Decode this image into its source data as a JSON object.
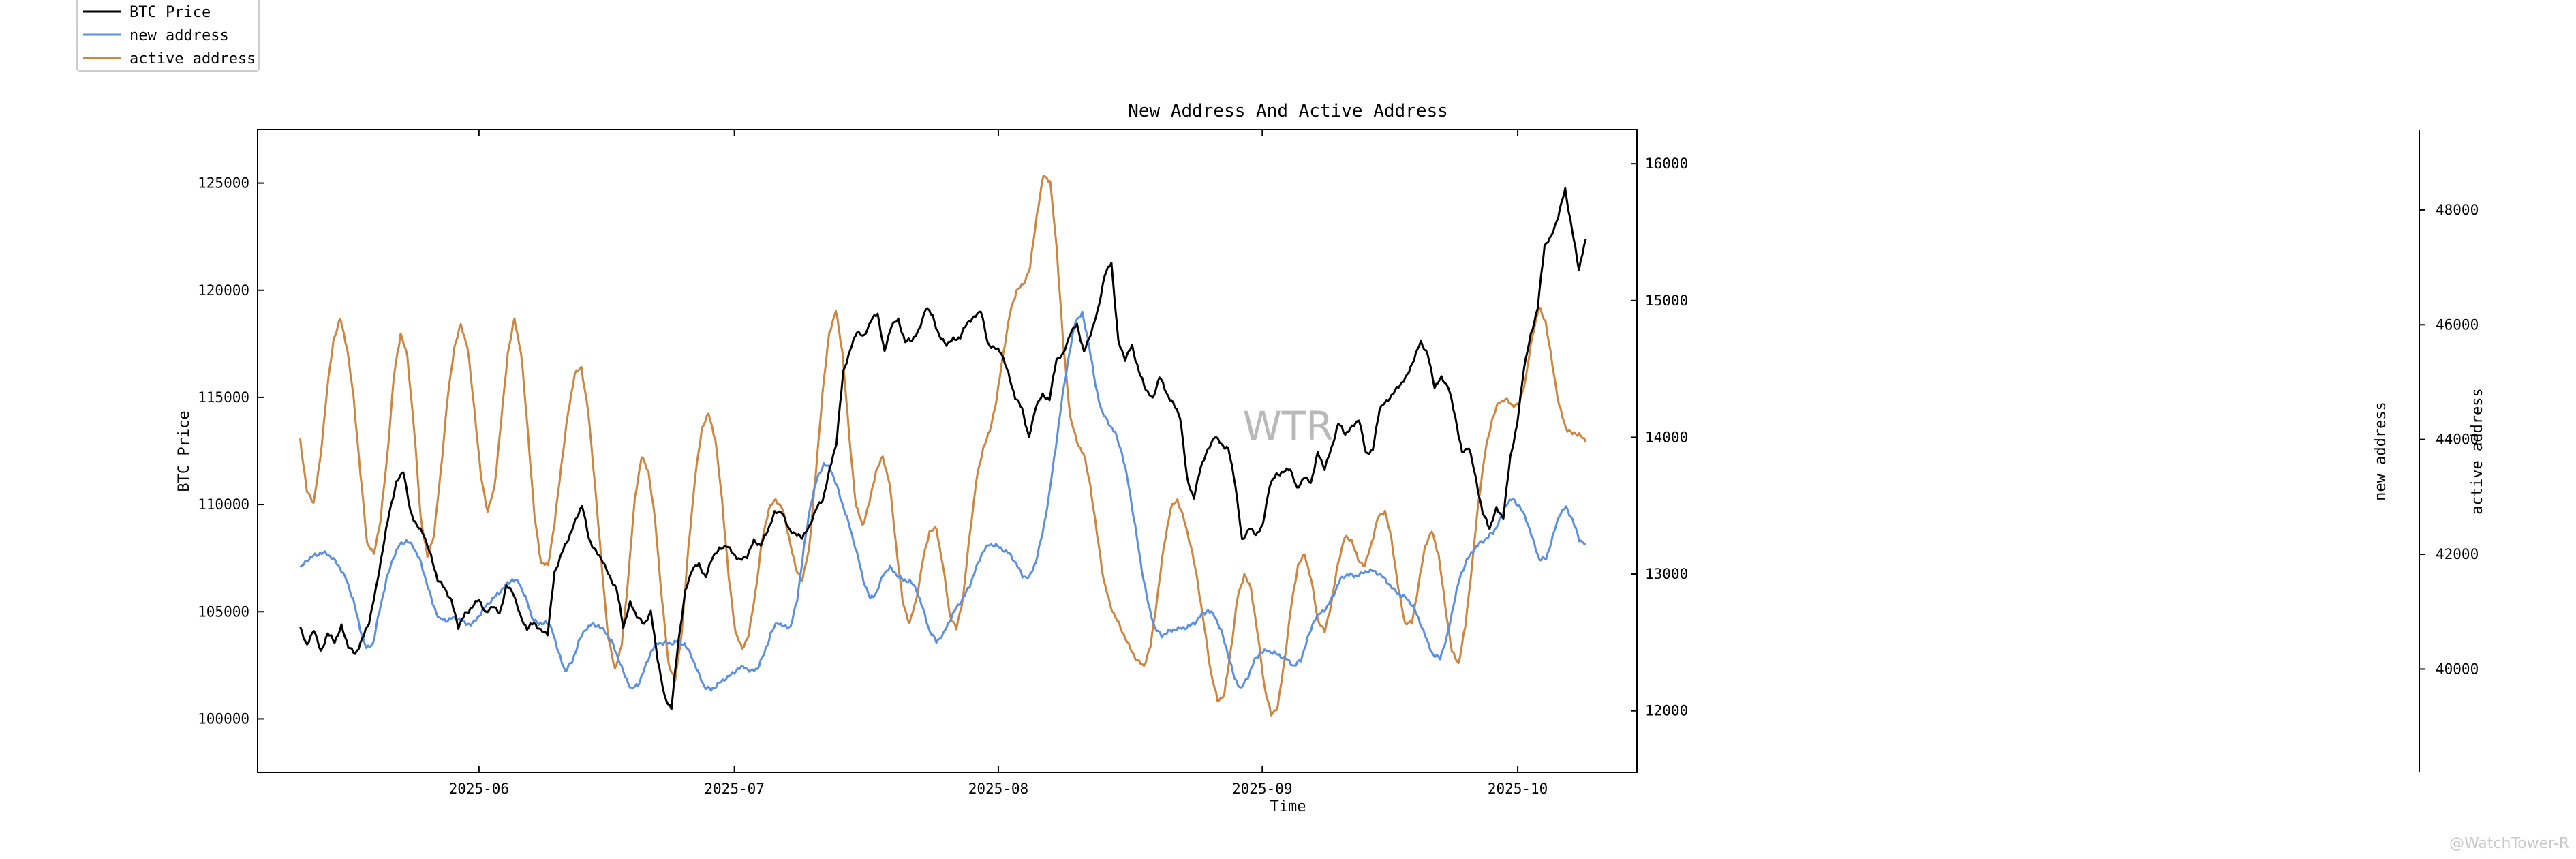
{
  "chart_data": {
    "type": "line",
    "title": "New Address And Active Address",
    "xlabel": "Time",
    "x_start": "2025-05-11",
    "x_end": "2025-10-09",
    "xlim": [
      "2025-05-06",
      "2025-10-15"
    ],
    "x_ticks": [
      {
        "date": "2025-06-01",
        "label": "2025-06"
      },
      {
        "date": "2025-07-01",
        "label": "2025-07"
      },
      {
        "date": "2025-08-01",
        "label": "2025-08"
      },
      {
        "date": "2025-09-01",
        "label": "2025-09"
      },
      {
        "date": "2025-10-01",
        "label": "2025-10"
      }
    ],
    "axes": {
      "left": {
        "label": "BTC Price",
        "ylim": [
          97500,
          127500
        ],
        "ticks": [
          100000,
          105000,
          110000,
          115000,
          120000,
          125000
        ],
        "tick_labels": [
          "100000",
          "105000",
          "110000",
          "115000",
          "120000",
          "125000"
        ]
      },
      "right1": {
        "label": "new address",
        "ylim": [
          11550,
          16250
        ],
        "ticks": [
          12000,
          13000,
          14000,
          15000,
          16000
        ],
        "tick_labels": [
          "12000",
          "13000",
          "14000",
          "15000",
          "16000"
        ]
      },
      "right2": {
        "label": "active address",
        "ylim": [
          38200,
          49400
        ],
        "ticks": [
          40000,
          42000,
          44000,
          46000,
          48000
        ],
        "tick_labels": [
          "40000",
          "42000",
          "44000",
          "46000",
          "48000"
        ]
      }
    },
    "series": [
      {
        "name": "BTC Price",
        "axis": "left",
        "color": "#000000",
        "values": [
          104300,
          103400,
          104200,
          103100,
          104000,
          103600,
          104300,
          103400,
          103000,
          103700,
          104500,
          106000,
          107900,
          109700,
          111000,
          111600,
          109700,
          109000,
          108600,
          107600,
          106500,
          106100,
          105500,
          104300,
          104900,
          105200,
          105600,
          104900,
          105300,
          104900,
          106200,
          105900,
          104800,
          104200,
          104500,
          104100,
          104000,
          106800,
          107700,
          108400,
          109200,
          110000,
          108400,
          107800,
          107400,
          106600,
          106100,
          104300,
          105400,
          104800,
          104400,
          105000,
          102800,
          101000,
          100500,
          103600,
          105900,
          107000,
          107200,
          106600,
          107600,
          107900,
          108100,
          107700,
          107400,
          107600,
          108300,
          108100,
          108800,
          109600,
          109700,
          108900,
          108600,
          108500,
          108900,
          109800,
          110200,
          111600,
          112900,
          116200,
          117200,
          118100,
          117800,
          118600,
          118900,
          117100,
          118400,
          118600,
          117600,
          117700,
          118100,
          119200,
          118800,
          117800,
          117500,
          117700,
          117800,
          118500,
          118700,
          119100,
          117500,
          117300,
          117100,
          116100,
          115000,
          114500,
          113100,
          114600,
          115100,
          114900,
          116800,
          117000,
          118000,
          118400,
          117100,
          118000,
          119000,
          120700,
          121300,
          117600,
          116800,
          117400,
          116200,
          115400,
          114900,
          116000,
          115200,
          114700,
          114100,
          111200,
          110300,
          111800,
          112500,
          113200,
          112800,
          112600,
          111000,
          108300,
          108900,
          108600,
          109000,
          110900,
          111400,
          111500,
          111700,
          110700,
          111300,
          111000,
          112400,
          111700,
          112600,
          113800,
          113300,
          113600,
          114000,
          112400,
          112500,
          114500,
          114800,
          115200,
          115600,
          116000,
          116800,
          117600,
          117000,
          115500,
          115900,
          115500,
          114100,
          112400,
          112700,
          111200,
          109600,
          108900,
          109800,
          109400,
          112200,
          113700,
          116400,
          117900,
          119200,
          122100,
          122500,
          123500,
          124700,
          122800,
          121000,
          122400
        ]
      },
      {
        "name": "new address",
        "axis": "right1",
        "color": "#5b8fe0",
        "values": [
          13041,
          13099,
          13133,
          13152,
          13153,
          13110,
          13048,
          12954,
          12812,
          12608,
          12454,
          12495,
          12741,
          12955,
          13115,
          13214,
          13243,
          13207,
          13111,
          12955,
          12782,
          12673,
          12660,
          12679,
          12672,
          12638,
          12634,
          12697,
          12765,
          12817,
          12861,
          12918,
          12960,
          12940,
          12830,
          12683,
          12630,
          12652,
          12601,
          12420,
          12292,
          12356,
          12500,
          12596,
          12631,
          12622,
          12582,
          12506,
          12386,
          12253,
          12161,
          12192,
          12311,
          12440,
          12496,
          12496,
          12495,
          12507,
          12486,
          12407,
          12284,
          12177,
          12154,
          12193,
          12230,
          12263,
          12306,
          12323,
          12288,
          12311,
          12416,
          12563,
          12650,
          12613,
          12616,
          12812,
          13187,
          13506,
          13697,
          13802,
          13774,
          13640,
          13486,
          13333,
          13155,
          12954,
          12820,
          12867,
          13000,
          13048,
          12996,
          12956,
          12949,
          12887,
          12740,
          12581,
          12508,
          12555,
          12660,
          12752,
          12820,
          12913,
          13043,
          13164,
          13216,
          13208,
          13180,
          13150,
          13080,
          12987,
          12972,
          13090,
          13293,
          13571,
          13928,
          14290,
          14599,
          14852,
          14906,
          14689,
          14379,
          14184,
          14104,
          14029,
          13887,
          13655,
          13347,
          13032,
          12773,
          12602,
          12550,
          12578,
          12597,
          12603,
          12614,
          12644,
          12702,
          12736,
          12694,
          12582,
          12416,
          12234,
          12163,
          12248,
          12369,
          12431,
          12439,
          12421,
          12401,
          12372,
          12326,
          12374,
          12525,
          12662,
          12718,
          12758,
          12858,
          12964,
          12998,
          12986,
          12998,
          13024,
          13022,
          12994,
          12945,
          12885,
          12846,
          12823,
          12759,
          12646,
          12517,
          12403,
          12390,
          12528,
          12768,
          12978,
          13096,
          13174,
          13225,
          13261,
          13302,
          13390,
          13513,
          13549,
          13492,
          13404,
          13251,
          13106,
          13113,
          13271,
          13435,
          13489,
          13397,
          13253,
          13219
        ]
      },
      {
        "name": "active address",
        "axis": "right2",
        "color": "#cd853f",
        "values": [
          44000,
          43100,
          42900,
          43650,
          44850,
          45750,
          46100,
          45600,
          44700,
          43400,
          42200,
          42000,
          42600,
          43700,
          45100,
          45850,
          45450,
          44200,
          42650,
          41950,
          42350,
          43450,
          44700,
          45600,
          46000,
          45600,
          44550,
          43350,
          42750,
          43150,
          44300,
          45500,
          46100,
          45500,
          44150,
          42650,
          41850,
          41800,
          42550,
          43550,
          44450,
          45150,
          45250,
          44500,
          43250,
          41850,
          40550,
          40000,
          40400,
          41600,
          43000,
          43700,
          43450,
          42600,
          41250,
          40100,
          39800,
          40650,
          42150,
          43350,
          44200,
          44450,
          44000,
          42950,
          41600,
          40650,
          40350,
          40600,
          41350,
          42250,
          42800,
          42950,
          42800,
          42300,
          41750,
          41550,
          42100,
          43400,
          44800,
          45850,
          46250,
          45500,
          44050,
          42850,
          42500,
          42900,
          43450,
          43700,
          43250,
          42150,
          41150,
          40800,
          41200,
          41900,
          42400,
          42450,
          41800,
          40950,
          40700,
          41250,
          42350,
          43300,
          43850,
          44150,
          44700,
          45500,
          46200,
          46600,
          46700,
          47000,
          47900,
          48600,
          48500,
          47300,
          45600,
          44400,
          43950,
          43750,
          43200,
          42350,
          41550,
          41100,
          40850,
          40600,
          40350,
          40150,
          40050,
          40400,
          41250,
          42150,
          42800,
          42950,
          42600,
          42150,
          41550,
          40750,
          39950,
          39450,
          39550,
          40350,
          41250,
          41650,
          41400,
          40600,
          39700,
          39200,
          39350,
          40150,
          41100,
          41800,
          42000,
          41550,
          40850,
          40650,
          41150,
          41850,
          42300,
          42250,
          41900,
          41800,
          42200,
          42650,
          42750,
          42250,
          41400,
          40800,
          40800,
          41450,
          42150,
          42400,
          42000,
          41100,
          40300,
          40100,
          40750,
          41800,
          42950,
          43800,
          44350,
          44650,
          44700,
          44600,
          44600,
          45050,
          45800,
          46300,
          46050,
          45300,
          44600,
          44200,
          44100,
          44100,
          43950
        ]
      }
    ],
    "legend": {
      "location": "top-left",
      "entries": [
        "BTC Price",
        "new address",
        "active address"
      ]
    },
    "watermark": "WTR",
    "credit": "@WatchTower-R"
  }
}
